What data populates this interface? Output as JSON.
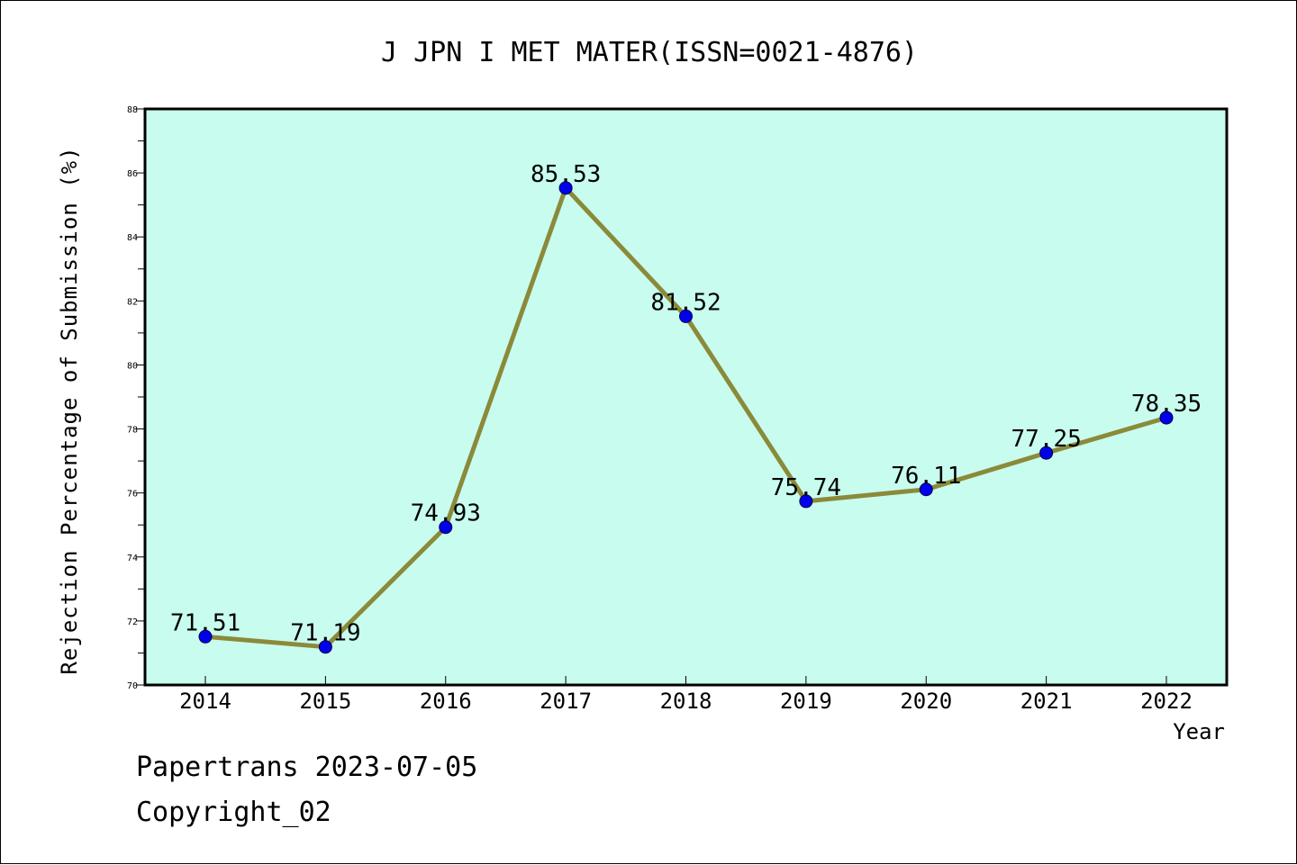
{
  "chart_data": {
    "type": "line",
    "title": "J JPN I MET MATER(ISSN=0021-4876)",
    "xlabel": "Year",
    "ylabel": "Rejection Percentage of Submission (%)",
    "categories": [
      "2014",
      "2015",
      "2016",
      "2017",
      "2018",
      "2019",
      "2020",
      "2021",
      "2022"
    ],
    "values": [
      71.51,
      71.19,
      74.93,
      85.53,
      81.52,
      75.74,
      76.11,
      77.25,
      78.35
    ],
    "data_labels": [
      "71.51",
      "71.19",
      "74.93",
      "85.53",
      "81.52",
      "75.74",
      "76.11",
      "77.25",
      "78.35"
    ],
    "ylim": [
      70,
      88
    ],
    "yticks": [
      70,
      72,
      74,
      76,
      78,
      80,
      82,
      84,
      86,
      88
    ],
    "grid": false,
    "line_color": "#8b8a3a",
    "marker_color": "#0000ee",
    "plot_background": "#c8fcee"
  },
  "footer": {
    "line1": "Papertrans 2023-07-05",
    "line2": "Copyright_02"
  }
}
